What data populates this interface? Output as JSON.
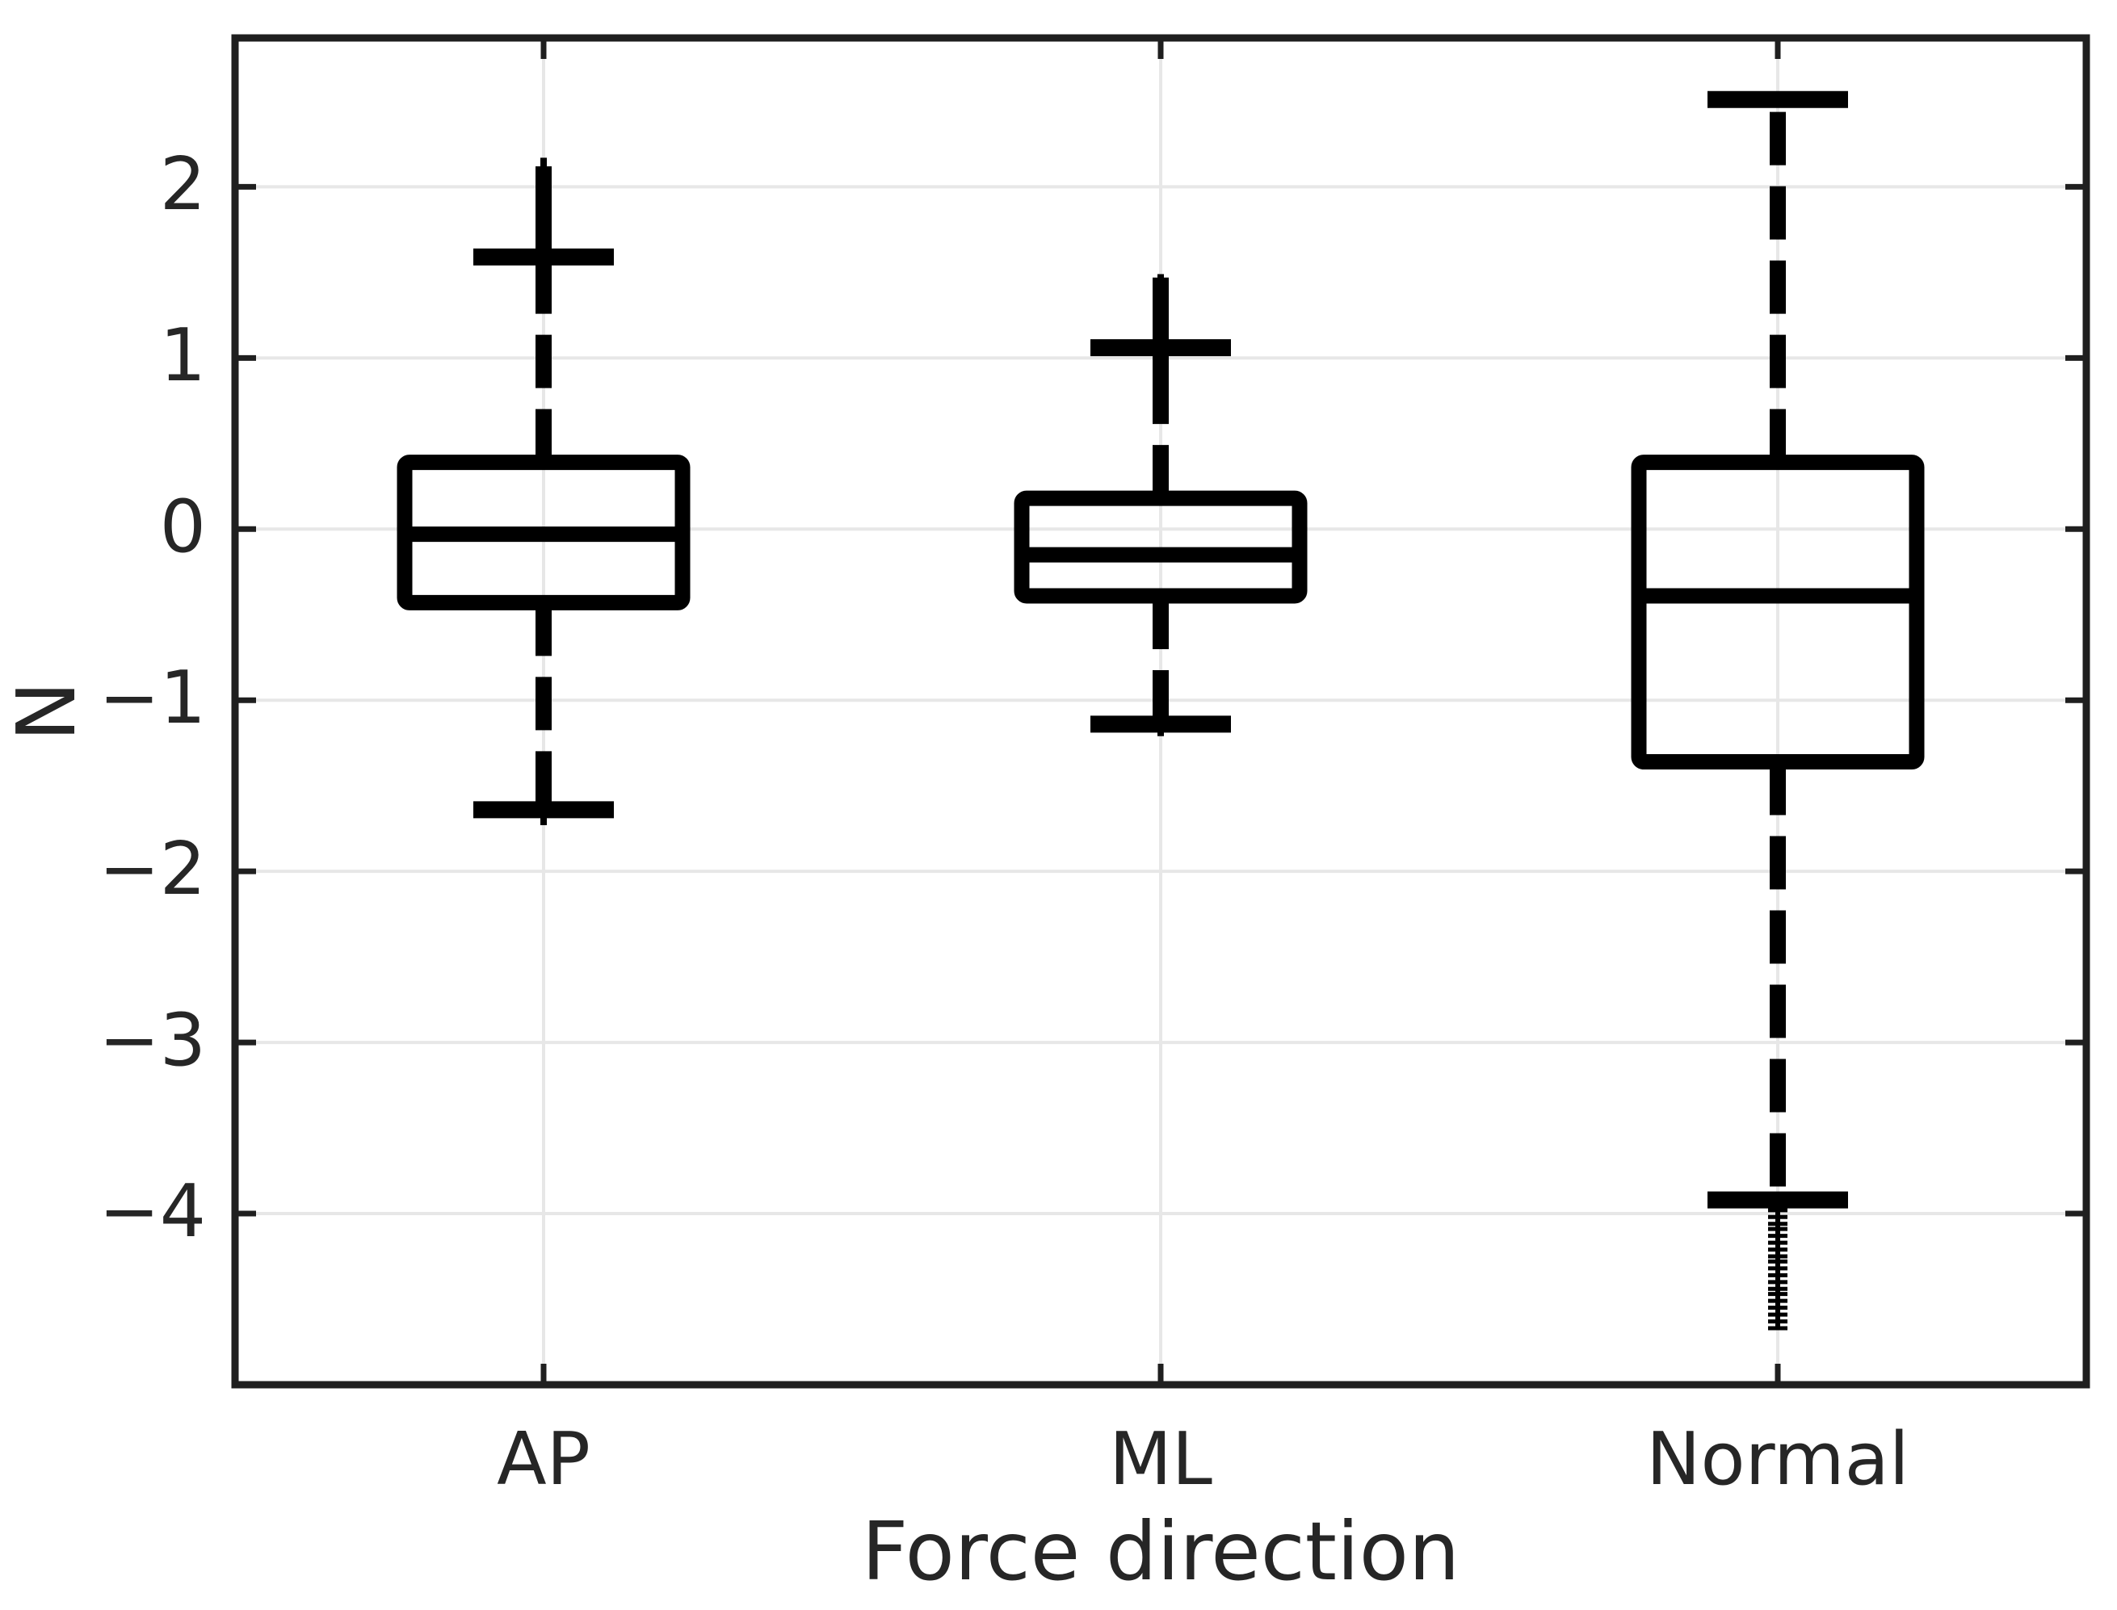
{
  "chart_data": {
    "type": "box",
    "title": "",
    "xlabel": "Force direction",
    "ylabel": "N",
    "categories": [
      "AP",
      "ML",
      "Normal"
    ],
    "yticks": [
      2,
      1,
      0,
      -1,
      -2,
      -3,
      -4
    ],
    "ylim": [
      -5.0,
      2.87
    ],
    "grid": true,
    "line_color": "#000000",
    "axis_color": "#1f1f1f",
    "grid_color": "#e7e7e7",
    "text_color": "#262626",
    "series": [
      {
        "label": "AP",
        "q1": -0.43,
        "median": -0.03,
        "q3": 0.39,
        "cap_hi": 1.59,
        "cap_lo": -1.64,
        "ext_hi": [
          2.12,
          1.55
        ],
        "tip_hi": [
          2.17,
          2.1
        ],
        "tip_lo": [
          -1.64,
          -1.73
        ],
        "outliers": []
      },
      {
        "label": "ML",
        "q1": -0.39,
        "median": -0.15,
        "q3": 0.18,
        "cap_hi": 1.06,
        "cap_lo": -1.14,
        "ext_hi": [
          1.47,
          0.92
        ],
        "tip_hi": [
          1.49,
          1.44
        ],
        "tip_lo": [
          -1.14,
          -1.21
        ],
        "outliers": []
      },
      {
        "label": "Normal",
        "q1": -1.36,
        "median": -0.39,
        "q3": 0.39,
        "cap_hi": 2.51,
        "cap_lo": -3.92,
        "ext_hi": null,
        "tip_hi": null,
        "tip_lo": null,
        "outliers": [
          -3.98,
          -4.02,
          -4.06,
          -4.09,
          -4.13,
          -4.17,
          -4.21,
          -4.25,
          -4.28,
          -4.32,
          -4.36,
          -4.4,
          -4.44,
          -4.47,
          -4.51,
          -4.55,
          -4.59,
          -4.63,
          -4.67
        ]
      }
    ]
  }
}
